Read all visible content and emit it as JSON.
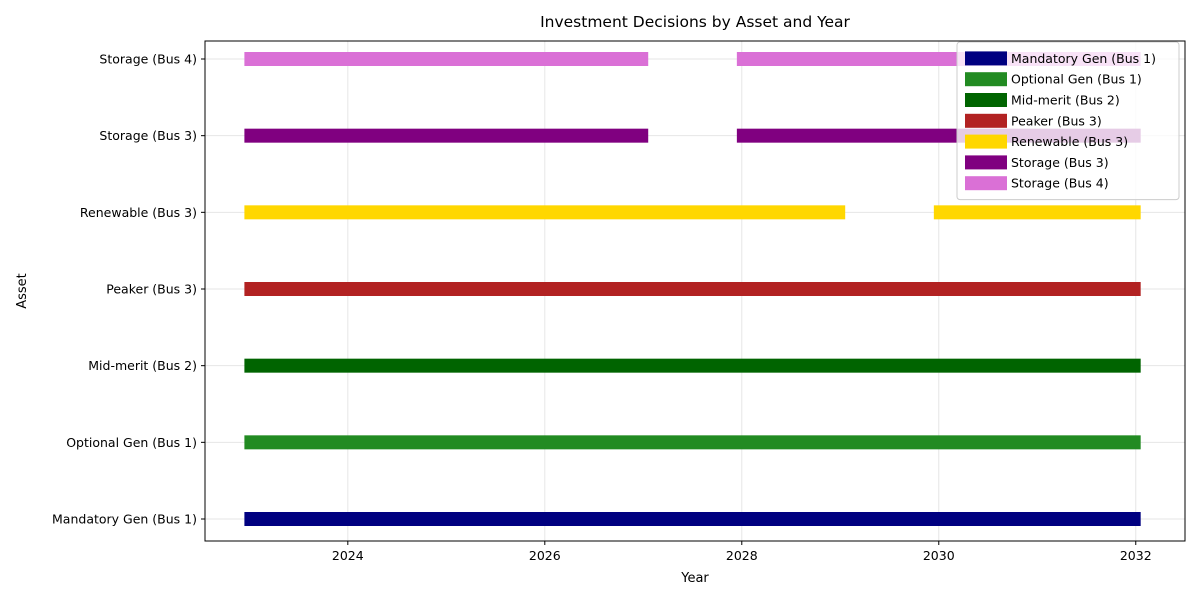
{
  "chart_data": {
    "type": "bar",
    "title": "Investment Decisions by Asset and Year",
    "xlabel": "Year",
    "ylabel": "Asset",
    "xlim": [
      2022.55,
      2032.5
    ],
    "xticks": [
      2024,
      2026,
      2028,
      2030,
      2032
    ],
    "grid": true,
    "legend_position": "top-right",
    "series": [
      {
        "name": "Mandatory Gen (Bus 1)",
        "color": "#000080",
        "intervals": [
          [
            2023,
            2032
          ]
        ]
      },
      {
        "name": "Optional Gen (Bus 1)",
        "color": "#228B22",
        "intervals": [
          [
            2023,
            2032
          ]
        ]
      },
      {
        "name": "Mid-merit (Bus 2)",
        "color": "#006400",
        "intervals": [
          [
            2023,
            2032
          ]
        ]
      },
      {
        "name": "Peaker (Bus 3)",
        "color": "#B22222",
        "intervals": [
          [
            2023,
            2032
          ]
        ]
      },
      {
        "name": "Renewable (Bus 3)",
        "color": "#FFD700",
        "intervals": [
          [
            2023,
            2029
          ],
          [
            2030,
            2032
          ]
        ]
      },
      {
        "name": "Storage (Bus 3)",
        "color": "#800080",
        "intervals": [
          [
            2023,
            2027
          ],
          [
            2028,
            2032
          ]
        ]
      },
      {
        "name": "Storage (Bus 4)",
        "color": "#DA70D6",
        "intervals": [
          [
            2023,
            2027
          ],
          [
            2028,
            2032
          ]
        ]
      }
    ]
  }
}
